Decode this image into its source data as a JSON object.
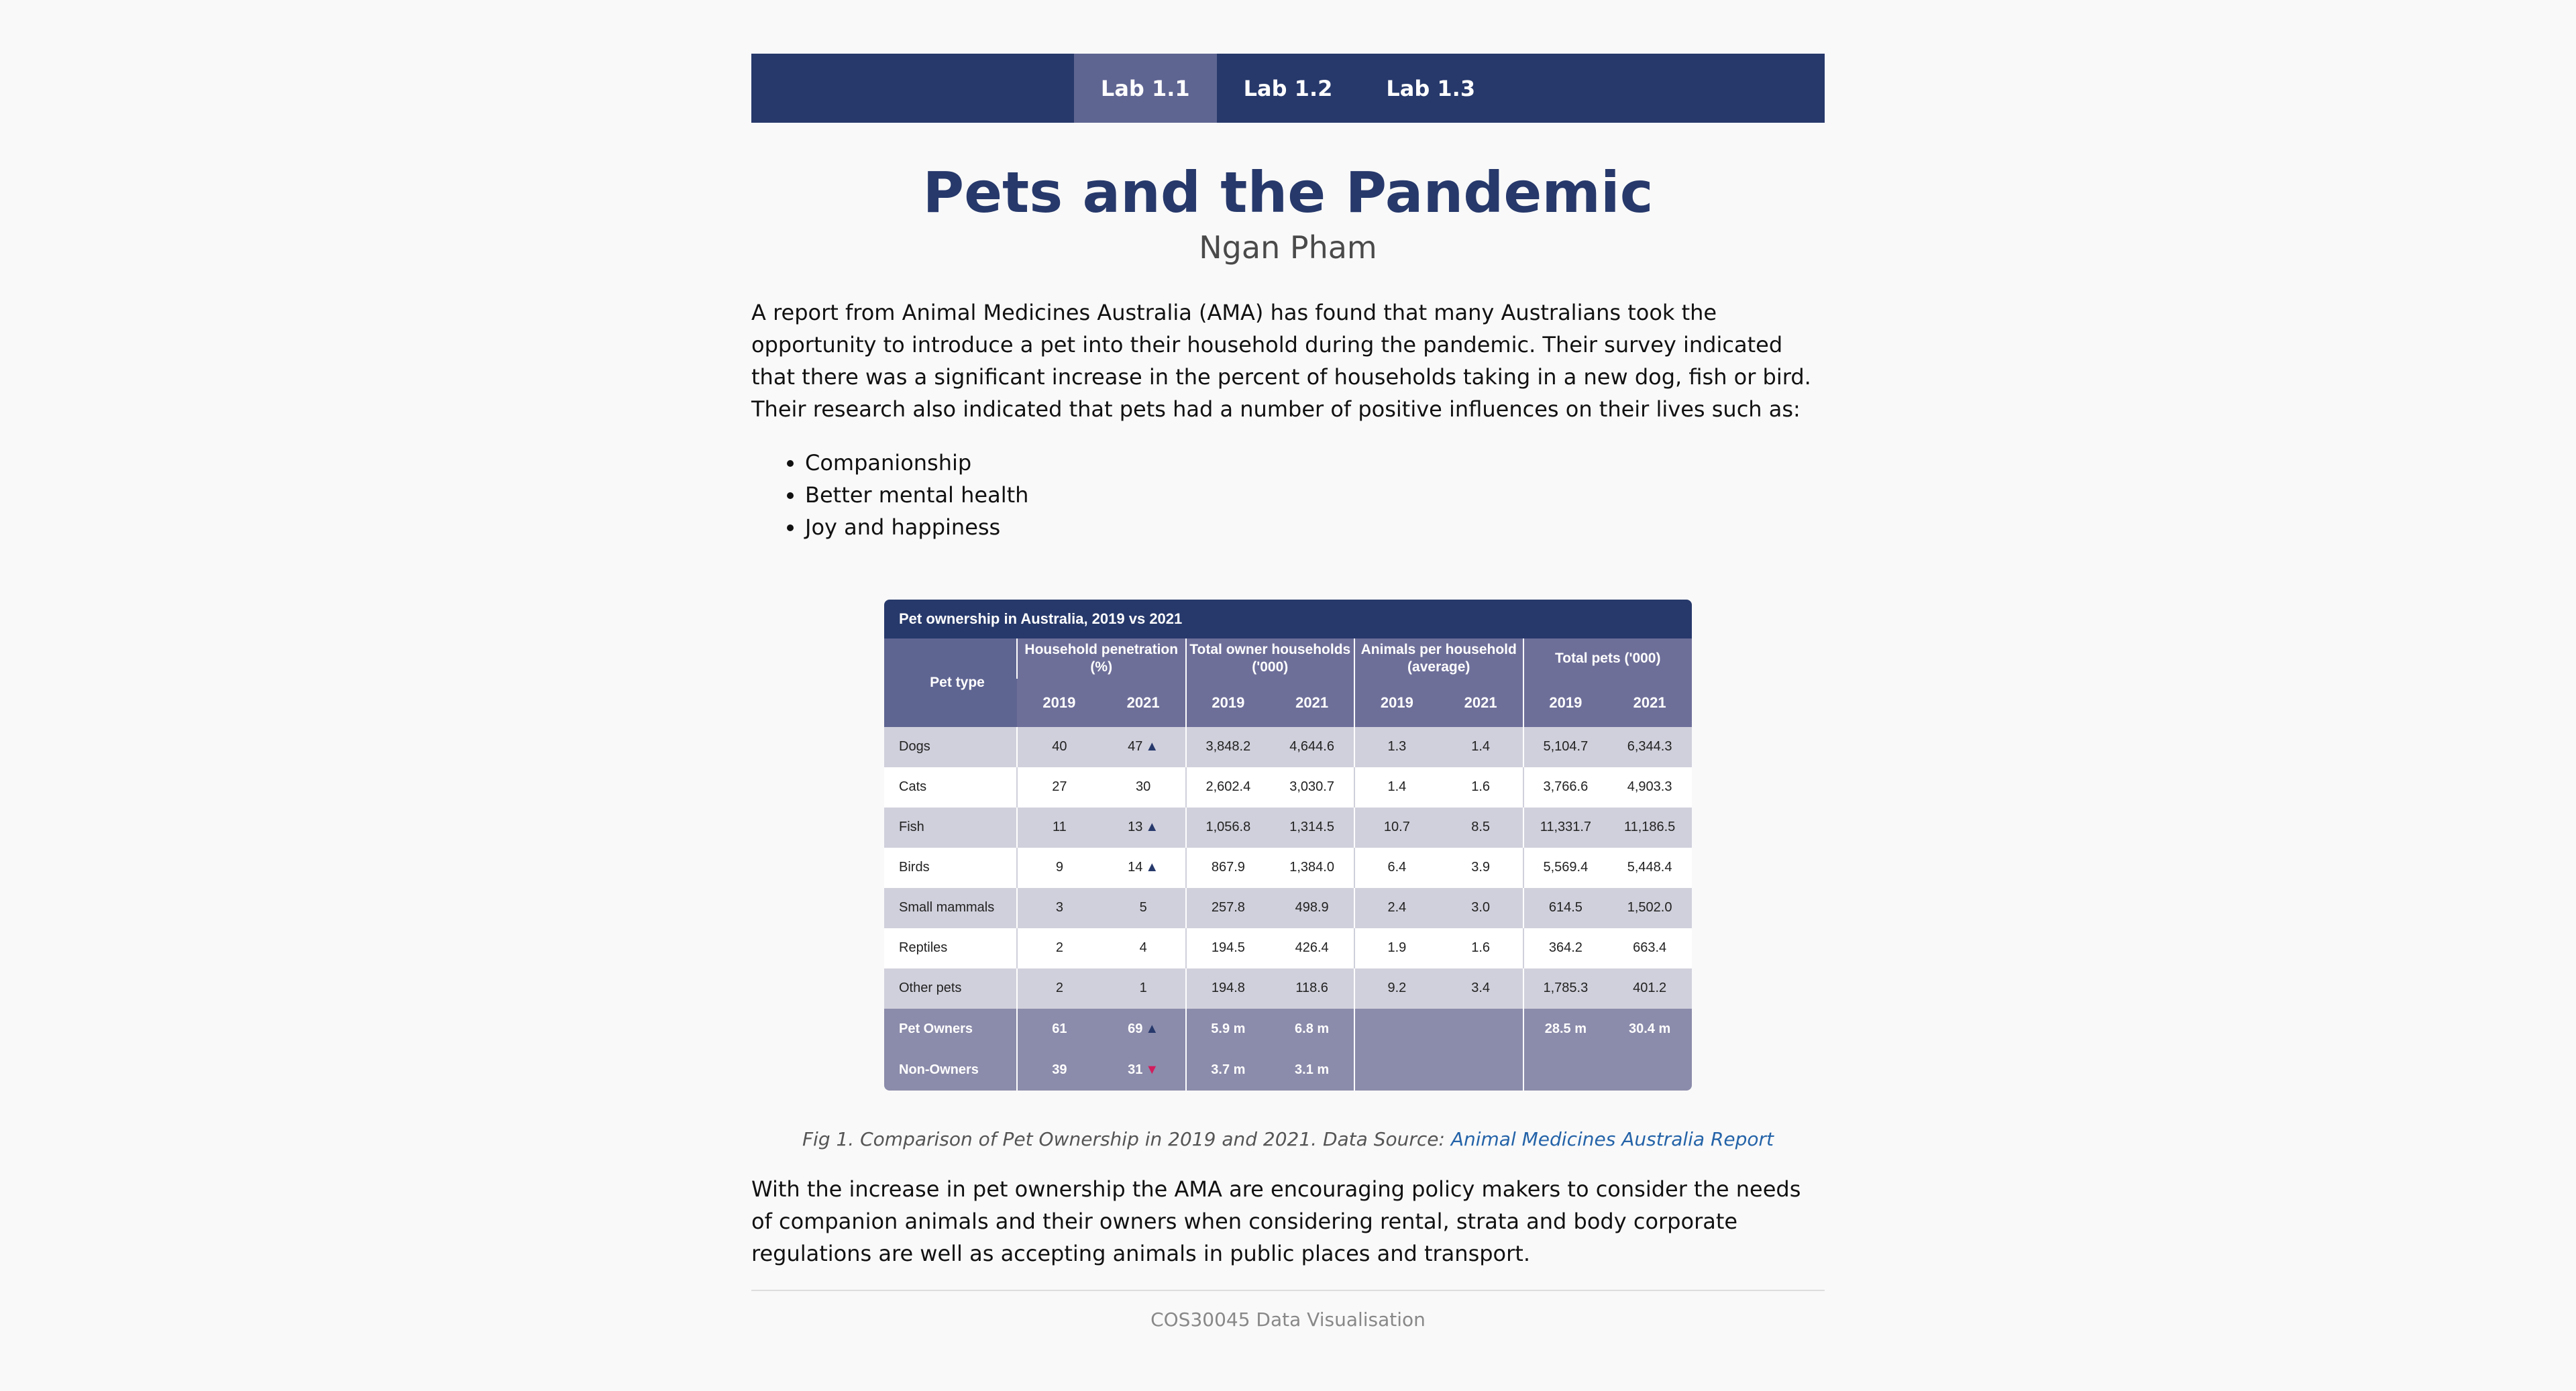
{
  "nav": {
    "items": [
      "Lab 1.1",
      "Lab 1.2",
      "Lab 1.3"
    ],
    "active": 0
  },
  "header": {
    "title": "Pets and the Pandemic",
    "author": "Ngan Pham"
  },
  "intro": "A report from Animal Medicines Australia (AMA) has found that many Australians took the opportunity to introduce a pet into their household during the pandemic. Their survey indicated that there was a significant increase in the percent of households taking in a new dog, fish or bird. Their research also indicated that pets had a number of positive influences on their lives such as:",
  "benefits": [
    "Companionship",
    "Better mental health",
    "Joy and happiness"
  ],
  "chart_data": {
    "type": "table",
    "title": "Pet ownership in Australia, 2019 vs 2021",
    "first_header": "Pet type",
    "groups": [
      "Household penetration (%)",
      "Total owner households ('000)",
      "Animals per household (average)",
      "Total pets ('000)"
    ],
    "years": [
      "2019",
      "2021"
    ],
    "rows": [
      {
        "label": "Dogs",
        "values": [
          "40",
          "47",
          "3,848.2",
          "4,644.6",
          "1.3",
          "1.4",
          "5,104.7",
          "6,344.3"
        ],
        "trend": "up"
      },
      {
        "label": "Cats",
        "values": [
          "27",
          "30",
          "2,602.4",
          "3,030.7",
          "1.4",
          "1.6",
          "3,766.6",
          "4,903.3"
        ],
        "trend": ""
      },
      {
        "label": "Fish",
        "values": [
          "11",
          "13",
          "1,056.8",
          "1,314.5",
          "10.7",
          "8.5",
          "11,331.7",
          "11,186.5"
        ],
        "trend": "up"
      },
      {
        "label": "Birds",
        "values": [
          "9",
          "14",
          "867.9",
          "1,384.0",
          "6.4",
          "3.9",
          "5,569.4",
          "5,448.4"
        ],
        "trend": "up"
      },
      {
        "label": "Small mammals",
        "values": [
          "3",
          "5",
          "257.8",
          "498.9",
          "2.4",
          "3.0",
          "614.5",
          "1,502.0"
        ],
        "trend": ""
      },
      {
        "label": "Reptiles",
        "values": [
          "2",
          "4",
          "194.5",
          "426.4",
          "1.9",
          "1.6",
          "364.2",
          "663.4"
        ],
        "trend": ""
      },
      {
        "label": "Other pets",
        "values": [
          "2",
          "1",
          "194.8",
          "118.6",
          "9.2",
          "3.4",
          "1,785.3",
          "401.2"
        ],
        "trend": ""
      },
      {
        "label": "Pet Owners",
        "values": [
          "61",
          "69",
          "5.9 m",
          "6.8 m",
          "",
          "",
          "28.5 m",
          "30.4 m"
        ],
        "trend": "up"
      },
      {
        "label": "Non-Owners",
        "values": [
          "39",
          "31",
          "3.7 m",
          "3.1 m",
          "",
          "",
          "",
          ""
        ],
        "trend": "down"
      }
    ]
  },
  "caption": {
    "text": "Fig 1. Comparison of Pet Ownership in 2019 and 2021. Data Source: ",
    "link": "Animal Medicines Australia Report"
  },
  "closing": "With the increase in pet ownership the AMA are encouraging policy makers to consider the needs of companion animals and their owners when considering rental, strata and body corporate regulations are well as accepting animals in public places and transport.",
  "footer": "COS30045 Data Visualisation",
  "colors": {
    "navy": "#27396b",
    "active_tab": "#5f6591",
    "row_shade": "#d0d0dc",
    "summary": "#8b8bab",
    "up_arrow": "#27396b",
    "down_arrow": "#d21d5d",
    "link": "#2463a8"
  }
}
